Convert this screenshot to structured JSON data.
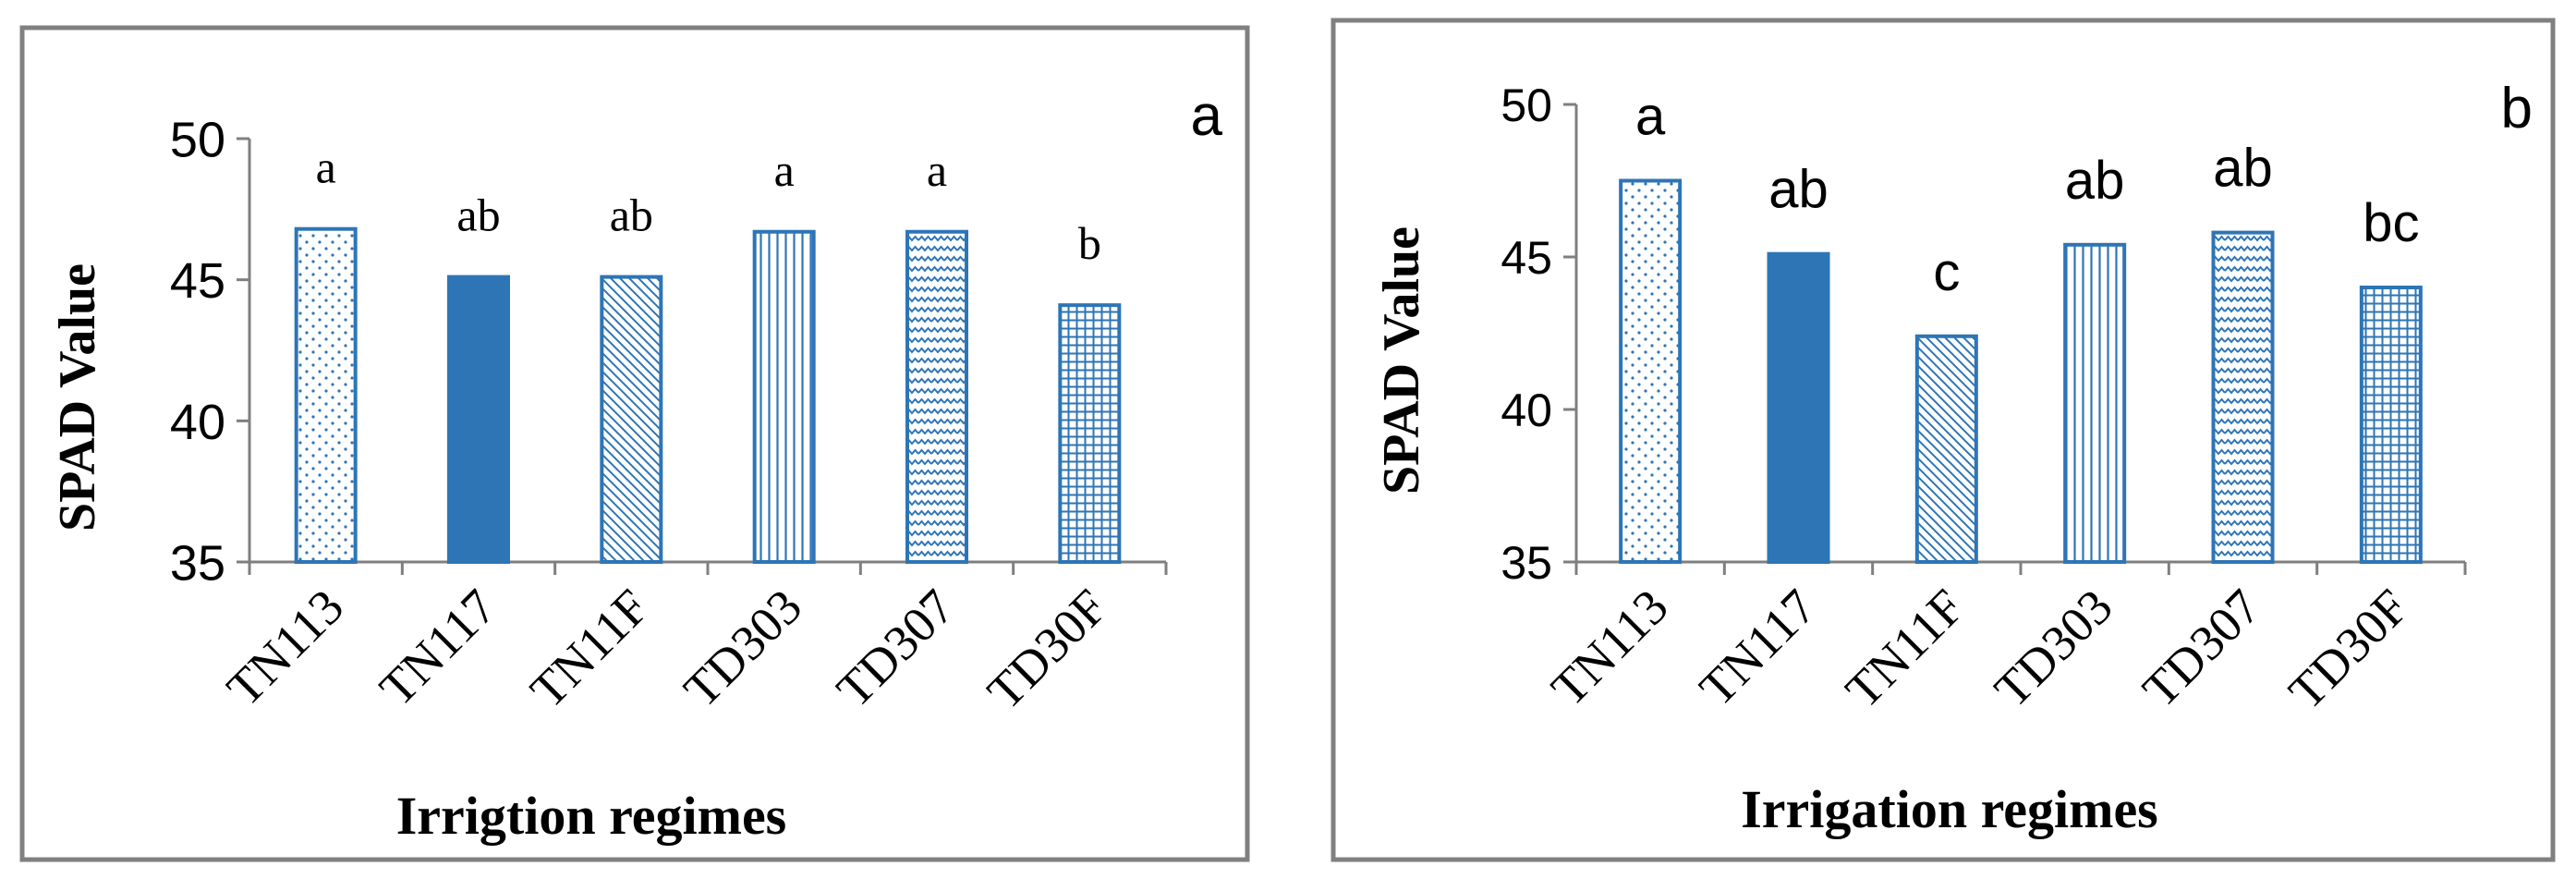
{
  "colors": {
    "bar_stroke": "#2e75b6",
    "bar_fill": "#2e75b6",
    "axis": "#7f7f7f",
    "frame": "#808080",
    "text": "#000000"
  },
  "chart_data": [
    {
      "type": "bar",
      "panel_label": "a",
      "categories": [
        "TN113",
        "TN117",
        "TN11F",
        "TD303",
        "TD307",
        "TD30F"
      ],
      "values": [
        46.8,
        45.1,
        45.1,
        46.7,
        46.7,
        44.1
      ],
      "significance_letters": [
        "a",
        "ab",
        "ab",
        "a",
        "a",
        "b"
      ],
      "fill_patterns": [
        "dots",
        "solid",
        "diag-down",
        "vertical",
        "zigzag",
        "grid"
      ],
      "ylabel": "SPAD Value",
      "xlabel": "Irrigtion regimes",
      "ylim": [
        35,
        50
      ],
      "yticks": [
        "35",
        "40",
        "45",
        "50"
      ],
      "grid": false
    },
    {
      "type": "bar",
      "panel_label": "b",
      "categories": [
        "TN113",
        "TN117",
        "TN11F",
        "TD303",
        "TD307",
        "TD30F"
      ],
      "values": [
        47.5,
        45.1,
        42.4,
        45.4,
        45.8,
        44.0
      ],
      "significance_letters": [
        "a",
        "ab",
        "c",
        "ab",
        "ab",
        "bc"
      ],
      "fill_patterns": [
        "dots",
        "solid",
        "diag-down",
        "vertical",
        "zigzag",
        "grid"
      ],
      "ylabel": "SPAD Value",
      "xlabel": "Irrigation regimes",
      "ylim": [
        35,
        50
      ],
      "yticks": [
        "35",
        "40",
        "45",
        "50"
      ],
      "grid": false
    }
  ]
}
